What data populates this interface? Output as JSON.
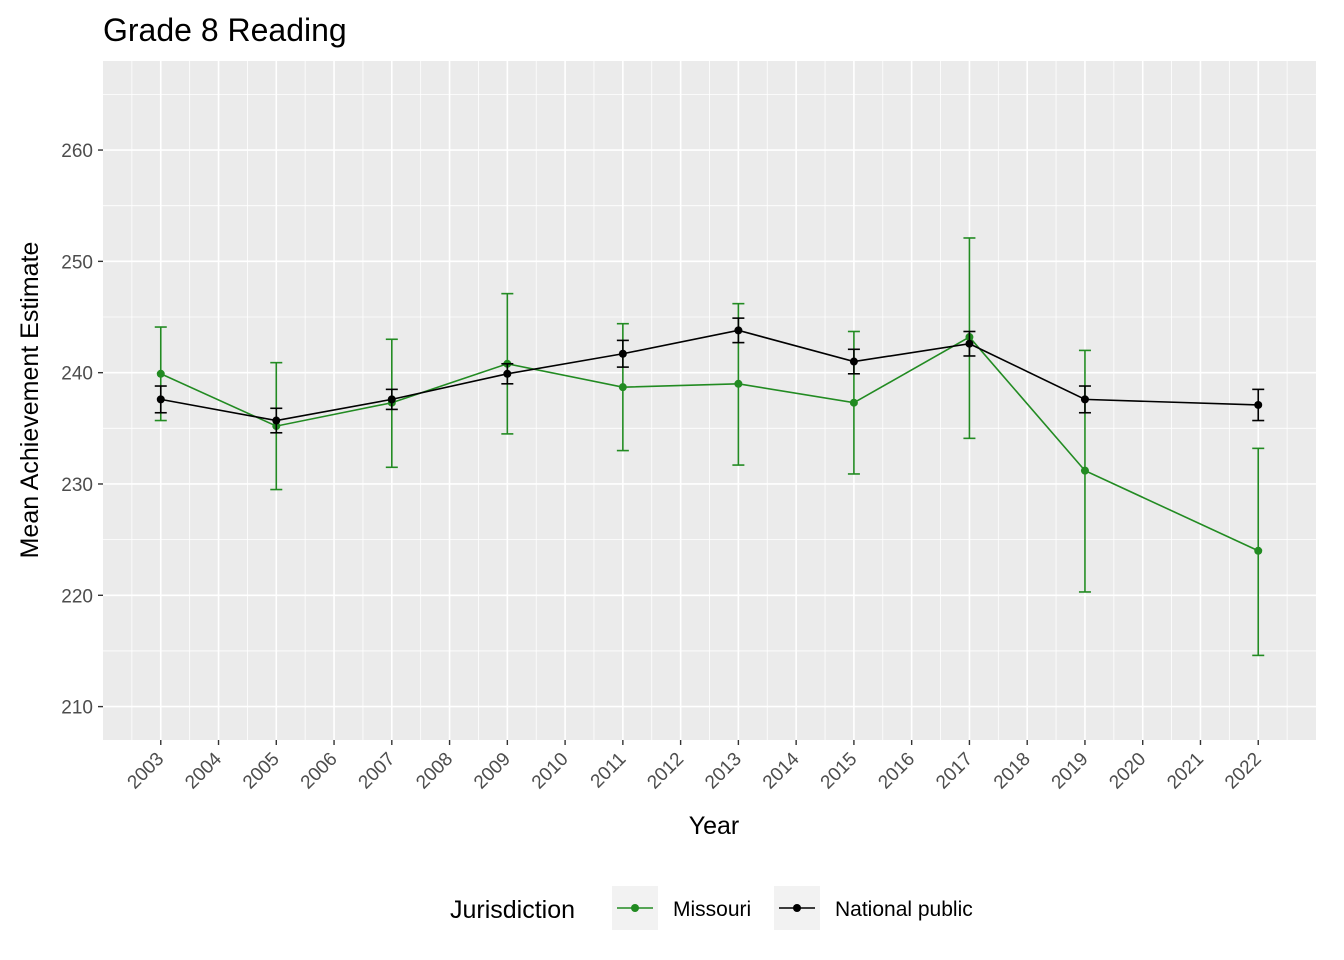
{
  "chart_data": {
    "type": "line",
    "title": "Grade 8 Reading",
    "xlabel": "Year",
    "ylabel": "Mean Achievement Estimate",
    "xlim": [
      2002,
      2023
    ],
    "ylim": [
      207,
      268
    ],
    "x_ticks": [
      2003,
      2004,
      2005,
      2006,
      2007,
      2008,
      2009,
      2010,
      2011,
      2012,
      2013,
      2014,
      2015,
      2016,
      2017,
      2018,
      2019,
      2020,
      2021,
      2022
    ],
    "y_ticks": [
      210,
      220,
      230,
      240,
      250,
      260
    ],
    "grid": true,
    "legend": {
      "title": "Jurisdiction",
      "placement": "bottom"
    },
    "series": [
      {
        "name": "Missouri",
        "color": "#228B22",
        "x": [
          2003,
          2005,
          2007,
          2009,
          2011,
          2013,
          2015,
          2017,
          2019,
          2022
        ],
        "y": [
          239.9,
          235.2,
          237.3,
          240.8,
          238.7,
          239.0,
          237.3,
          243.2,
          231.2,
          224.0
        ],
        "lower": [
          235.7,
          229.5,
          231.5,
          234.5,
          233.0,
          231.7,
          230.9,
          234.1,
          220.3,
          214.6
        ],
        "upper": [
          244.1,
          240.9,
          243.0,
          247.1,
          244.4,
          246.2,
          243.7,
          252.1,
          242.0,
          233.2
        ]
      },
      {
        "name": "National public",
        "color": "#000000",
        "x": [
          2003,
          2005,
          2007,
          2009,
          2011,
          2013,
          2015,
          2017,
          2019,
          2022
        ],
        "y": [
          237.6,
          235.7,
          237.6,
          239.9,
          241.7,
          243.8,
          241.0,
          242.6,
          237.6,
          237.1
        ],
        "lower": [
          236.4,
          234.6,
          236.7,
          239.0,
          240.5,
          242.7,
          239.9,
          241.5,
          236.4,
          235.7
        ],
        "upper": [
          238.8,
          236.8,
          238.5,
          240.8,
          242.9,
          244.9,
          242.1,
          243.7,
          238.8,
          238.5
        ]
      }
    ]
  }
}
